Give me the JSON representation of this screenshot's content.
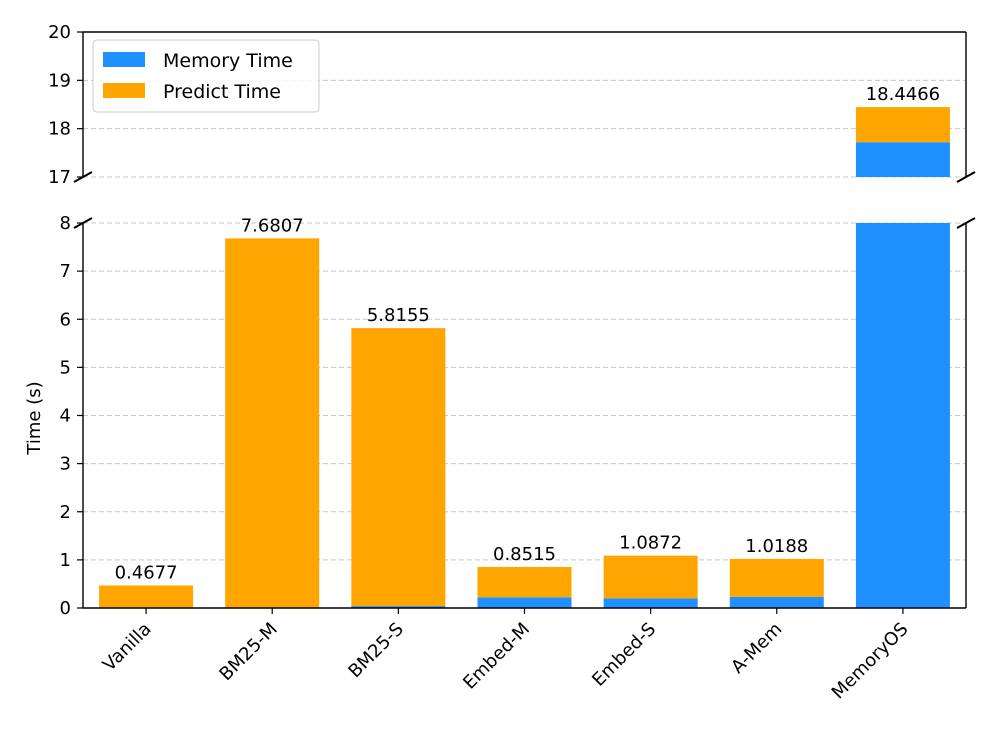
{
  "chart_data": {
    "type": "bar",
    "stacked": true,
    "broken_y_axis": true,
    "ylabel": "Time (s)",
    "xlabel": "",
    "title": "",
    "categories": [
      "Vanilla",
      "BM25-M",
      "BM25-S",
      "Embed-M",
      "Embed-S",
      "A-Mem",
      "MemoryOS"
    ],
    "series": [
      {
        "name": "Memory Time",
        "color": "#1e90ff",
        "values": [
          0.0,
          0.0,
          0.04,
          0.22,
          0.2,
          0.23,
          17.72
        ]
      },
      {
        "name": "Predict Time",
        "color": "#ffa500",
        "values": [
          0.4677,
          7.6807,
          5.7755,
          0.6315,
          0.8872,
          0.7888,
          0.7266
        ]
      }
    ],
    "totals": [
      "0.4677",
      "7.6807",
      "5.8155",
      "0.8515",
      "1.0872",
      "1.0188",
      "18.4466"
    ],
    "lower_ylim": [
      0,
      8
    ],
    "upper_ylim": [
      17,
      20
    ],
    "lower_yticks": [
      "0",
      "1",
      "2",
      "3",
      "4",
      "5",
      "6",
      "7",
      "8"
    ],
    "upper_yticks": [
      "17",
      "18",
      "19",
      "20"
    ],
    "grid": true,
    "grid_style": "dashed-horizontal",
    "legend_position": "top-left"
  }
}
